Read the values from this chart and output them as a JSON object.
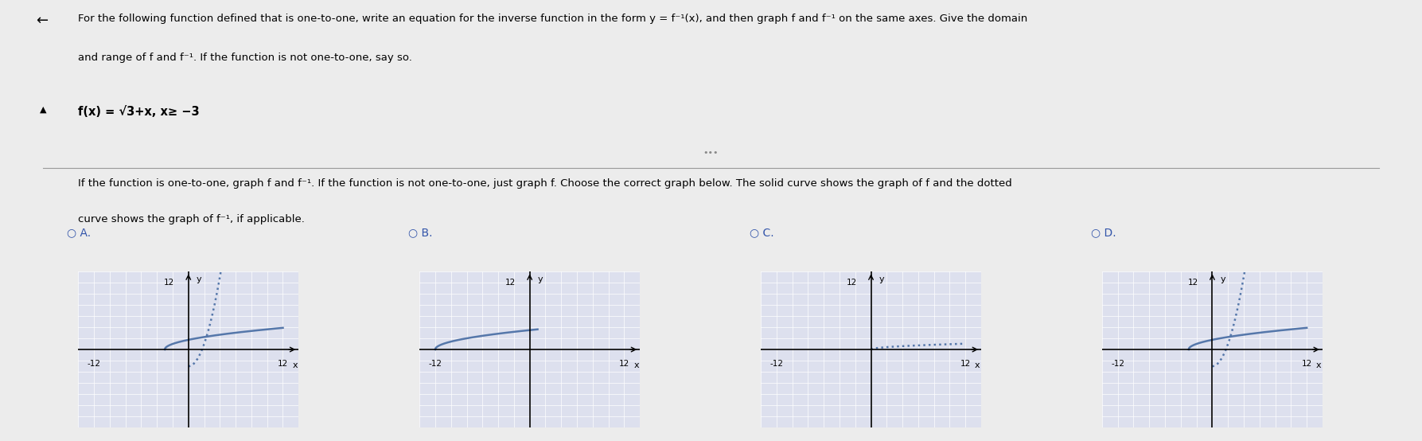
{
  "title_line1": "For the following function defined that is one-to-one, write an equation for the inverse function in the form y = f⁻¹(x), and then graph f and f⁻¹ on the same axes. Give the domain",
  "title_line2": "and range of f and f⁻¹. If the function is not one-to-one, say so.",
  "func_text": "f(x) = √3+x, x≥ −3",
  "instr_line1": "If the function is one-to-one, graph f and f⁻¹. If the function is not one-to-one, just graph f. Choose the correct graph below. The solid curve shows the graph of f and the dotted",
  "instr_line2": "curve shows the graph of f⁻¹, if applicable.",
  "options": [
    "A.",
    "B.",
    "C.",
    "D."
  ],
  "axis_lim": [
    -14,
    14
  ],
  "tick_vals": [
    -12,
    12
  ],
  "curve_color": "#5577aa",
  "grid_color": "#ccccdd",
  "graph_bg": "#dde0ee",
  "fig_bg": "#ececec",
  "separator_color": "#999999",
  "option_color": "#3355aa",
  "graph_A": {
    "show_f": true,
    "show_inv": true
  },
  "graph_B": {
    "show_f": true,
    "show_inv": false,
    "flat": true
  },
  "graph_C": {
    "show_f": false,
    "show_inv": false,
    "flat_dotted": true
  },
  "graph_D": {
    "show_f": true,
    "show_inv": true
  }
}
